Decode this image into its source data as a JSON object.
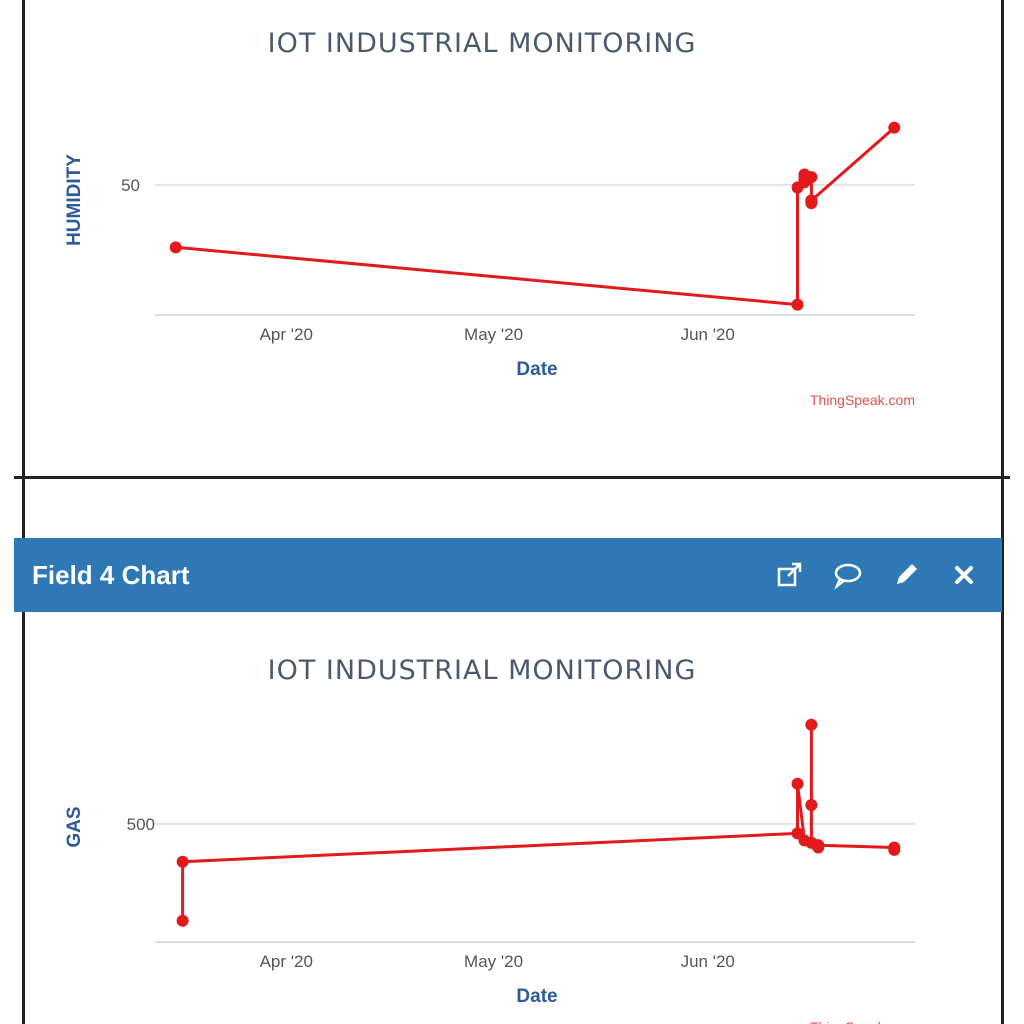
{
  "chart_header": {
    "title": "Field 4 Chart",
    "icons": [
      "external-link-icon",
      "comment-icon",
      "pencil-icon",
      "close-icon"
    ]
  },
  "colors": {
    "series": "#e31a1c",
    "header": "#2e78b5",
    "axis_title": "#2e5a99"
  },
  "chart_data": [
    {
      "type": "line",
      "title": "IOT INDUSTRIAL MONITORING",
      "xlabel": "Date",
      "ylabel": "HUMIDITY",
      "x_ticks": [
        "Apr '20",
        "May '20",
        "Jun '20"
      ],
      "y_ticks": [
        {
          "value": 50,
          "label": "50"
        }
      ],
      "ylim": [
        0,
        98
      ],
      "xlim": [
        "2020-03-13",
        "2020-07-01"
      ],
      "grid": true,
      "credit": "ThingSpeak.com",
      "series": [
        {
          "x": [
            "2020-03-16",
            "2020-06-14",
            "2020-06-14",
            "2020-06-15",
            "2020-06-15",
            "2020-06-15",
            "2020-06-15",
            "2020-06-16",
            "2020-06-16",
            "2020-06-16",
            "2020-06-16",
            "2020-06-28"
          ],
          "values": [
            26,
            4,
            49,
            51,
            52,
            53,
            54,
            53,
            44,
            43,
            44,
            72
          ]
        }
      ]
    },
    {
      "type": "line",
      "title": "IOT INDUSTRIAL MONITORING",
      "xlabel": "Date",
      "ylabel": "GAS",
      "x_ticks": [
        "Apr '20",
        "May '20",
        "Jun '20"
      ],
      "y_ticks": [
        {
          "value": 500,
          "label": "500"
        }
      ],
      "ylim": [
        0,
        1050
      ],
      "xlim": [
        "2020-03-13",
        "2020-07-01"
      ],
      "grid": true,
      "credit": "ThingSpeak.com",
      "series": [
        {
          "x": [
            "2020-03-17",
            "2020-03-17",
            "2020-06-14",
            "2020-06-14",
            "2020-06-15",
            "2020-06-16",
            "2020-06-16",
            "2020-06-16",
            "2020-06-16",
            "2020-06-17",
            "2020-06-17",
            "2020-06-28",
            "2020-06-28"
          ],
          "values": [
            90,
            340,
            460,
            670,
            430,
            420,
            580,
            920,
            420,
            400,
            410,
            400,
            390
          ]
        }
      ]
    }
  ]
}
